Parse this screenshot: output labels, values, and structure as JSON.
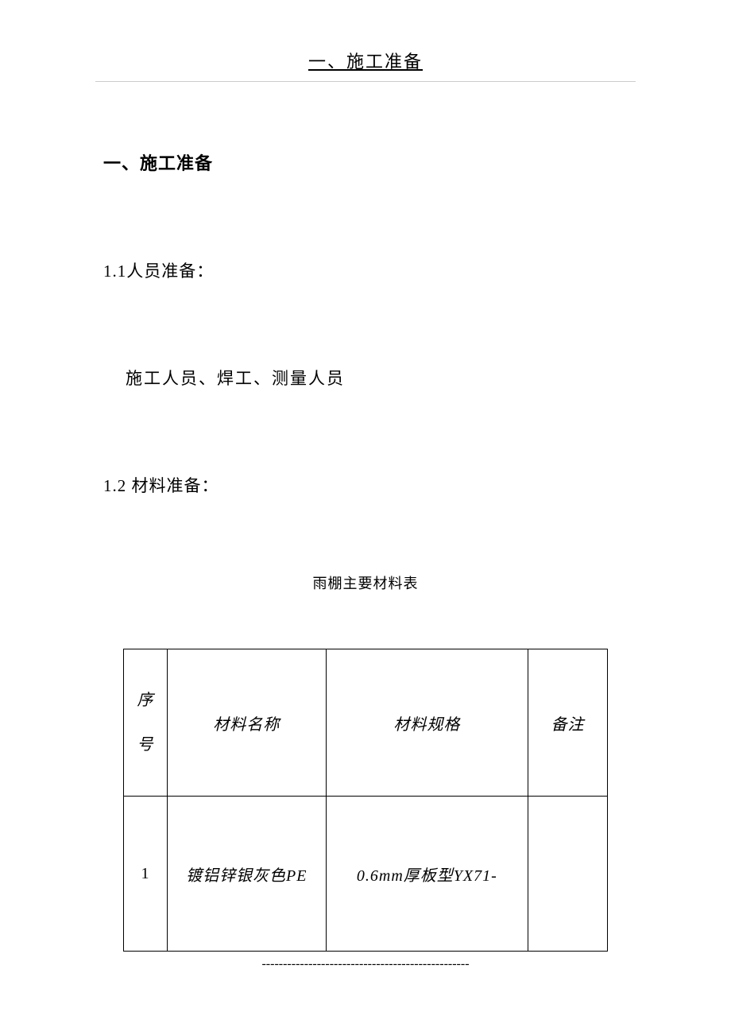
{
  "header": {
    "title": "一、施工准备"
  },
  "section": {
    "heading": "一、施工准备",
    "sub1_1": "1.1人员准备：",
    "sub1_1_body": "施工人员、焊工、测量人员",
    "sub1_2": "1.2 材料准备："
  },
  "table": {
    "title": "雨棚主要材料表",
    "columns": {
      "seq_char1": "序",
      "seq_char2": "号",
      "name": "材料名称",
      "spec": "材料规格",
      "note": "备注"
    },
    "rows": [
      {
        "seq": "1",
        "name": "镀铝锌银灰色PE",
        "spec": "0.6mm厚板型YX71-",
        "note": ""
      }
    ]
  },
  "footer": {
    "dashes": "-------------------------------------------------"
  },
  "styles": {
    "background_color": "#ffffff",
    "text_color": "#000000",
    "border_color": "#000000",
    "header_line_color": "#cccccc",
    "body_fontsize": 21,
    "header_fontsize": 22,
    "table_title_fontsize": 18,
    "table_cell_fontsize": 20
  }
}
